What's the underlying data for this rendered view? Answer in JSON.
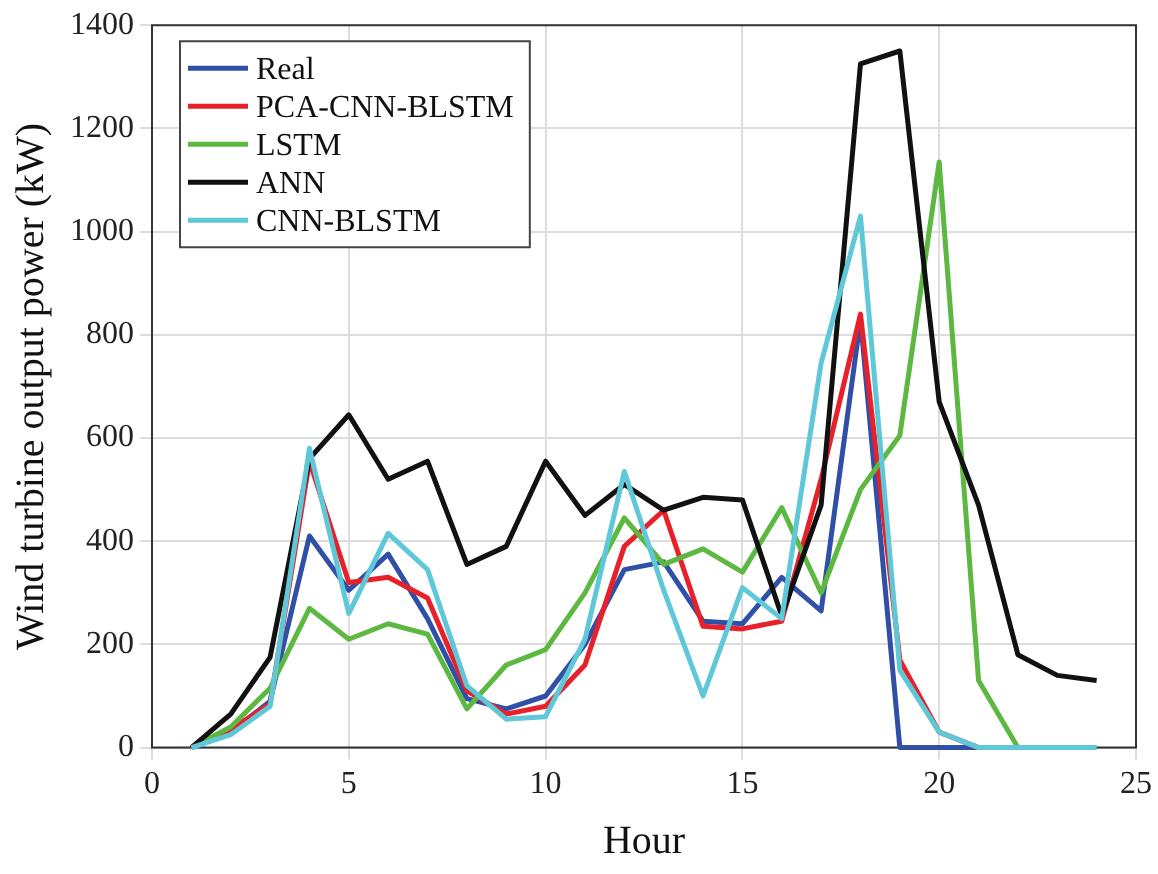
{
  "chart_data": {
    "type": "line",
    "xlabel": "Hour",
    "ylabel": "Wind turbine output power (kW)",
    "x": [
      1,
      2,
      3,
      4,
      5,
      6,
      7,
      8,
      9,
      10,
      11,
      12,
      13,
      14,
      15,
      16,
      17,
      18,
      19,
      20,
      21,
      22,
      23,
      24
    ],
    "series": [
      {
        "name": "Real",
        "color": "#3050a8",
        "values": [
          0,
          30,
          90,
          410,
          305,
          375,
          250,
          95,
          75,
          100,
          200,
          345,
          360,
          245,
          240,
          330,
          265,
          830,
          0,
          0,
          0,
          null,
          null,
          null
        ]
      },
      {
        "name": "PCA-CNN-BLSTM",
        "color": "#e8202a",
        "values": [
          0,
          35,
          85,
          555,
          320,
          330,
          290,
          110,
          65,
          80,
          160,
          390,
          460,
          235,
          230,
          245,
          520,
          840,
          170,
          30,
          0,
          0,
          null,
          null
        ]
      },
      {
        "name": "LSTM",
        "color": "#5cb840",
        "values": [
          0,
          40,
          115,
          270,
          210,
          240,
          220,
          75,
          160,
          190,
          300,
          445,
          355,
          385,
          340,
          465,
          300,
          500,
          605,
          1135,
          130,
          0,
          null,
          null
        ]
      },
      {
        "name": "ANN",
        "color": "#111111",
        "values": [
          0,
          65,
          175,
          560,
          645,
          520,
          555,
          355,
          390,
          555,
          450,
          510,
          460,
          485,
          480,
          255,
          470,
          1325,
          1350,
          670,
          470,
          180,
          140,
          130
        ]
      },
      {
        "name": "CNN-BLSTM",
        "color": "#5ec8d8",
        "values": [
          0,
          25,
          80,
          580,
          260,
          415,
          345,
          120,
          55,
          60,
          210,
          535,
          305,
          100,
          310,
          250,
          745,
          1030,
          150,
          30,
          0,
          0,
          0,
          0
        ]
      }
    ],
    "xlim": [
      0,
      25
    ],
    "xticks": [
      0,
      5,
      10,
      15,
      20,
      25
    ],
    "ylim": [
      0,
      1400
    ],
    "yticks": [
      0,
      200,
      400,
      600,
      800,
      1000,
      1200,
      1400
    ],
    "grid": true,
    "legend": "top left",
    "marker": "none",
    "line_style": "solid"
  }
}
